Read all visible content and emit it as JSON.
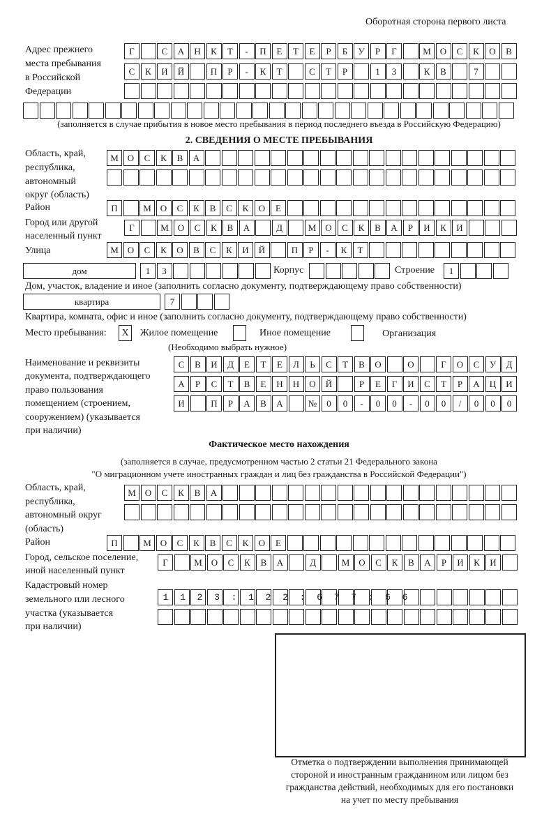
{
  "header": {
    "page_side": "Оборотная сторона первого листа"
  },
  "previous_address": {
    "label": [
      "Адрес прежнего",
      "места пребывания",
      "в Российской",
      "Федерации"
    ],
    "rows": [
      "Г САНКТ-ПЕТЕРБУРГ МОСКОВ",
      "СКИЙ ПР-КТ СТР 13 КВ 7  ",
      "",
      ""
    ],
    "note": "(заполняется в случае прибытия в новое место пребывания в период последнего въезда в Российскую Федерацию)"
  },
  "section2": {
    "title": "2. СВЕДЕНИЯ О МЕСТЕ ПРЕБЫВАНИЯ",
    "region_label": [
      "Область, край,",
      "республика,",
      "автономный",
      "округ (область)"
    ],
    "region_rows": [
      "МОСКВА",
      ""
    ],
    "district_label": "Район",
    "district": "П МОСКВСКОЕ",
    "city_label": [
      "Город или другой",
      "населенный пункт"
    ],
    "city": "Г МОСКВА Д МОСКВАРИКИ",
    "street_label": "Улица",
    "street": "МОСКОВСКИЙ ПР-КТ",
    "house_type": "дом",
    "house_number": "13",
    "korpus_label": "Корпус",
    "korpus": "",
    "building_label": "Строение",
    "building": "1",
    "house_note": "Дом, участок, владение и иное (заполнить согласно документу, подтверждающему право собственности)",
    "apartment_type": "квартира",
    "apartment_number": "7",
    "apartment_note": "Квартира, комната, офис и иное (заполнить согласно документу, подтверждающему право собственности)",
    "stay_place_label": "Место пребывания:",
    "stay_options": [
      {
        "label": "Жилое помещение",
        "checked": true,
        "mark": "Х"
      },
      {
        "label": "Иное помещение",
        "checked": false,
        "mark": ""
      },
      {
        "label": "Организация",
        "checked": false,
        "mark": ""
      }
    ],
    "stay_note": "(Необходимо выбрать нужное)",
    "document_label": [
      "Наименование и реквизиты",
      "документа, подтверждающего",
      "право пользования",
      "помещением (строением,",
      "сооружением) (указывается",
      "при наличии)"
    ],
    "document_rows": [
      "СВИДЕТЕЛЬСТВО О ГОСУД",
      "АРСТВЕННОЙ РЕГИСТРАЦИ",
      "И ПРАВА №00-00-00/000"
    ]
  },
  "actual_location": {
    "title": "Фактическое место нахождения",
    "note": [
      "(заполняется в случае, предусмотренном частью 2 статьи 21 Федерального закона",
      "\"О миграционном учете иностранных граждан и лиц без гражданства в Российской Федерации\")"
    ],
    "region_label": [
      "Область, край,",
      "республика,",
      "автономный округ",
      "(область)"
    ],
    "region_rows": [
      "МОСКВА",
      ""
    ],
    "district_label": "Район",
    "district": "П МОСКВСКОЕ",
    "city_label": [
      "Город, сельское поселение,",
      "иной населенный пункт"
    ],
    "city": "Г МОСКВА Д МОСКВАРИКИ",
    "cadastral_label": [
      "Кадастровый номер",
      "земельного или лесного",
      "участка (указывается",
      "при наличии)"
    ],
    "cadastral_rows": [
      "1123:122:677:66",
      ""
    ]
  },
  "stamp": {
    "caption": [
      "Отметка о подтверждении выполнения принимающей",
      "стороной и иностранным гражданином или лицом без",
      "гражданства действий, необходимых для его постановки",
      "на учет по месту пребывания"
    ]
  }
}
